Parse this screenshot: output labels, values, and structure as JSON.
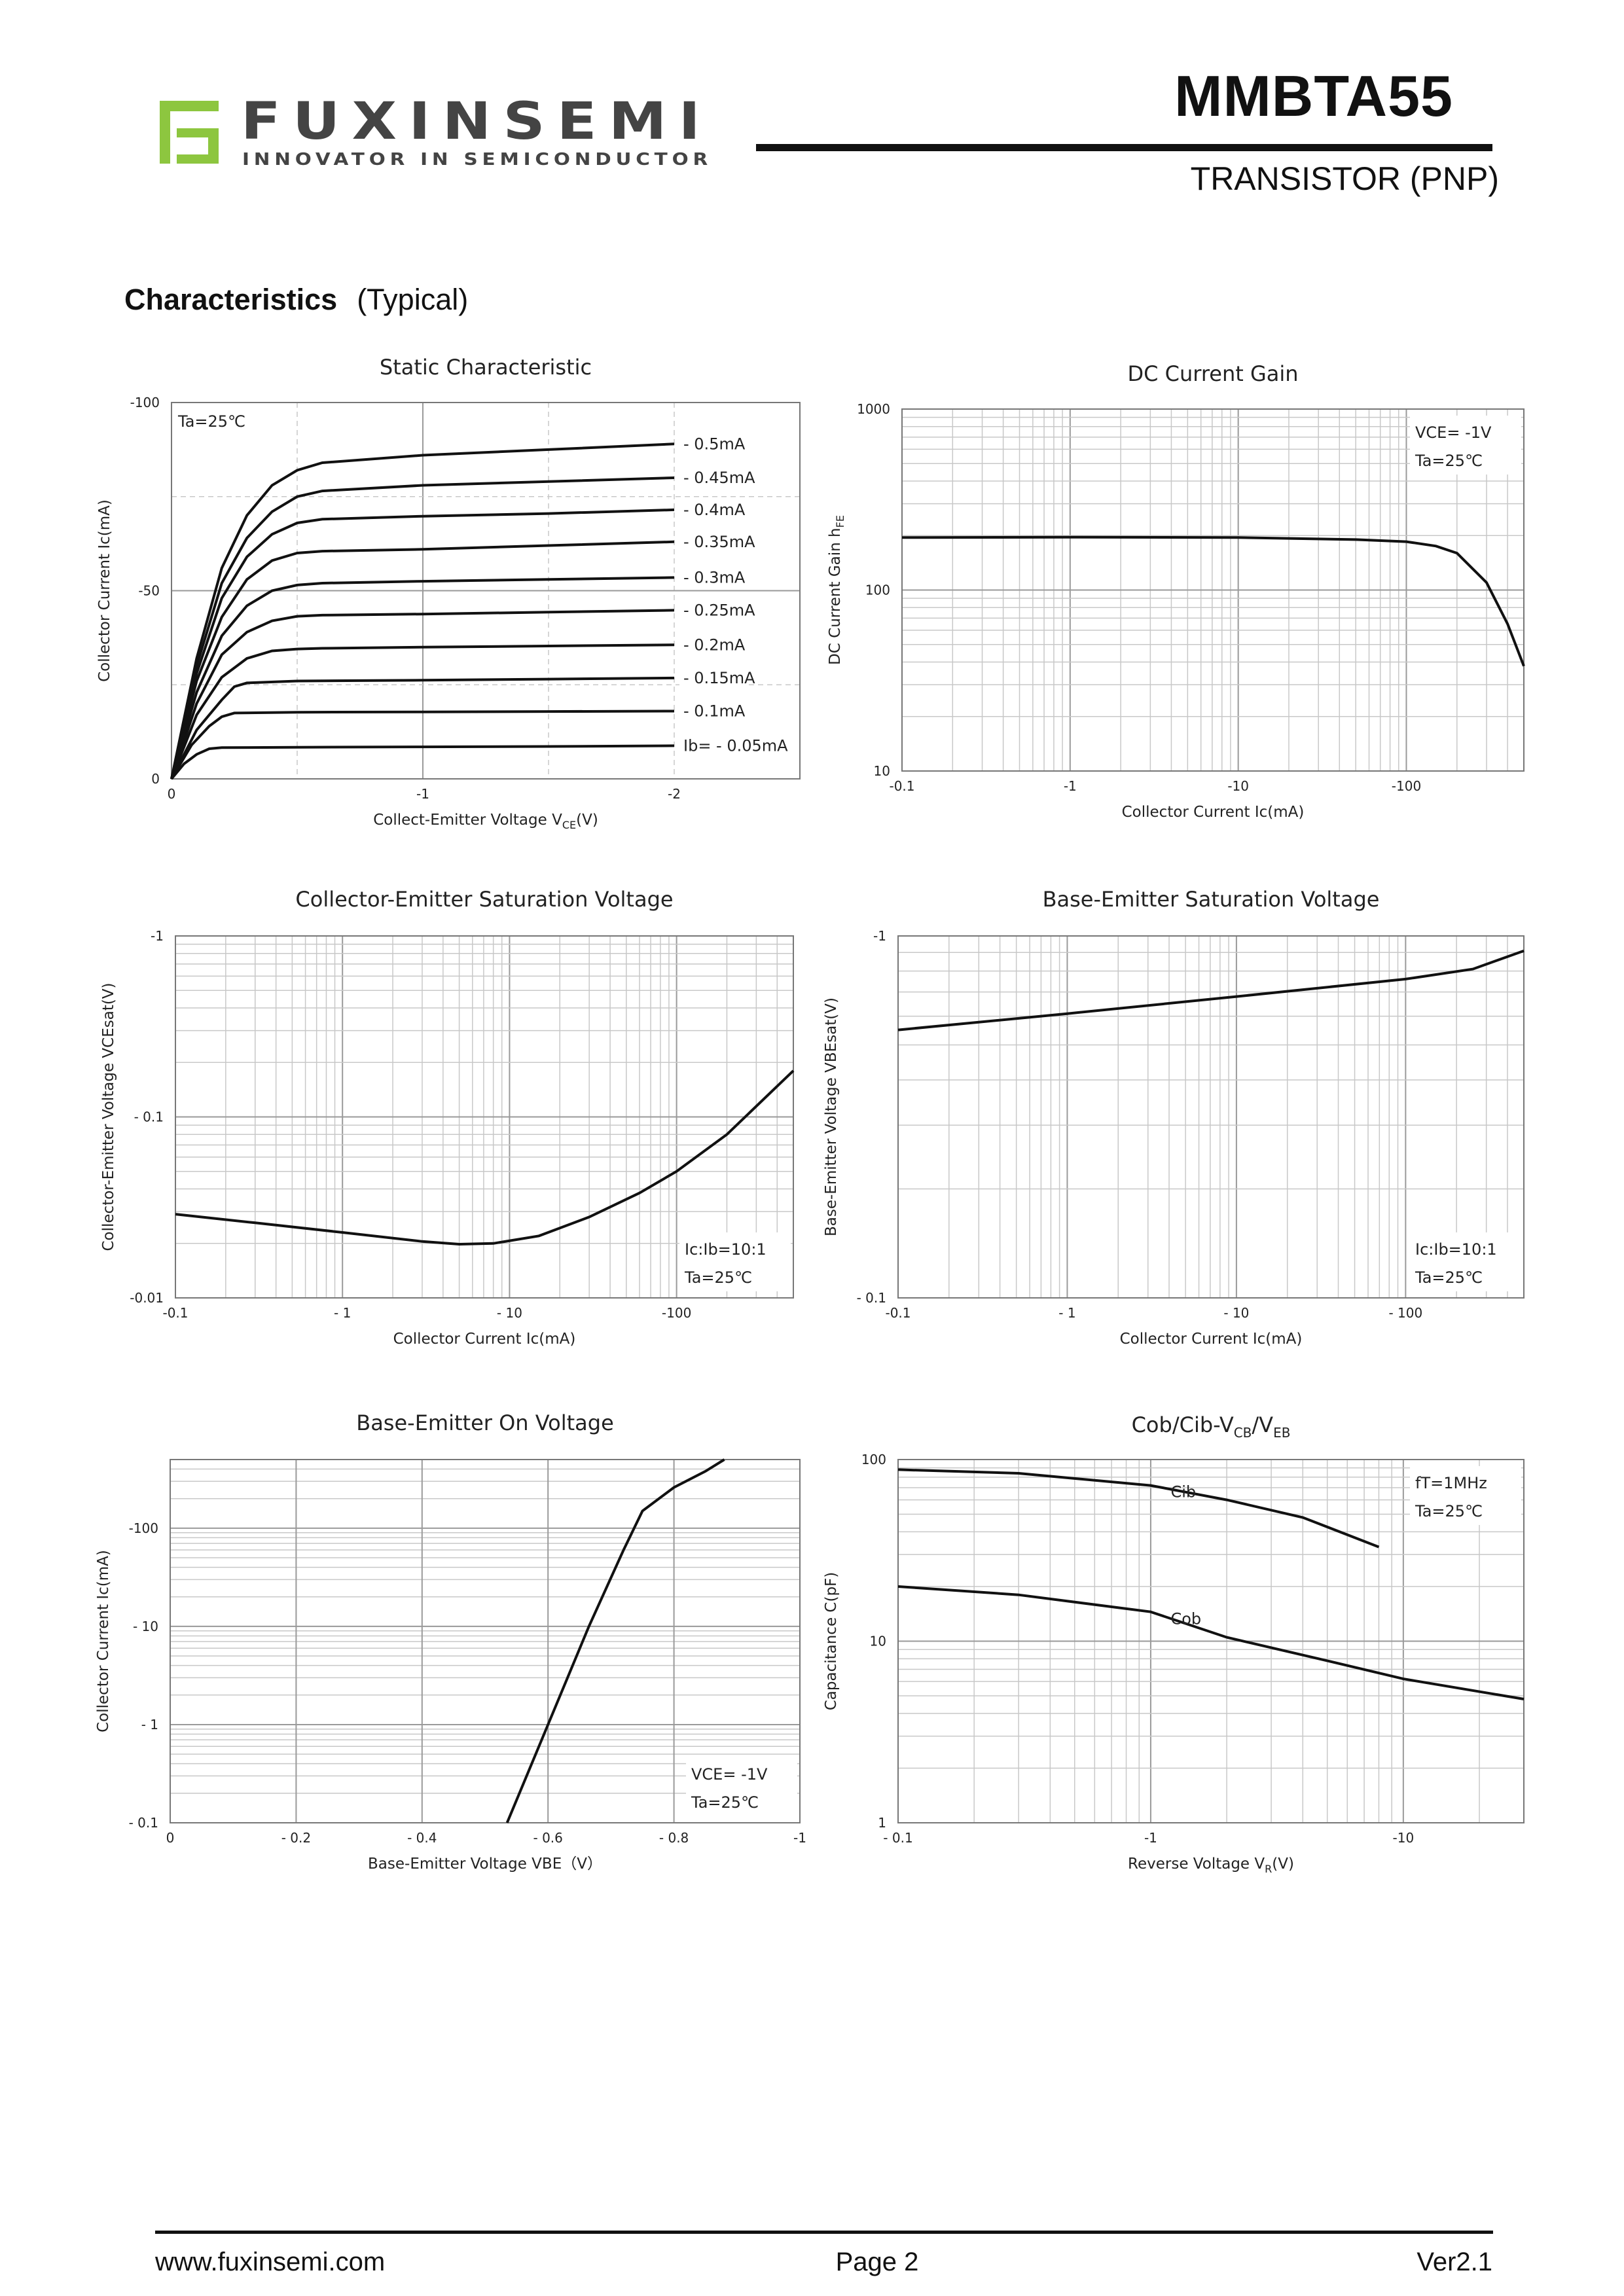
{
  "header": {
    "brand": "FUXINSEMI",
    "tagline": "INNOVATOR IN SEMICONDUCTOR",
    "part_number": "MMBTA55",
    "device_type": "TRANSISTOR (PNP)",
    "brand_color": "#8dc63f",
    "brand_dark": "#444444"
  },
  "section": {
    "title": "Characteristics",
    "subtitle": "(Typical)"
  },
  "footer": {
    "website": "www.fuxinsemi.com",
    "page": "Page 2",
    "version": "Ver2.1"
  },
  "chart_data": [
    {
      "id": "static",
      "type": "line",
      "title": "Static Characteristic",
      "xlabel": "Collect-Emitter Voltage  V",
      "xlabel_sub": "CE",
      "xlabel_tail": "(V)",
      "ylabel": "Collector  Current   Ic(mA)",
      "x_scale": "linear",
      "y_scale": "linear",
      "xlim": [
        0,
        -2.5
      ],
      "ylim": [
        0,
        -100
      ],
      "x_ticks": [
        {
          "v": 0,
          "t": "0"
        },
        {
          "v": -1,
          "t": "-1"
        },
        {
          "v": -2,
          "t": "-2"
        }
      ],
      "y_ticks": [
        {
          "v": 0,
          "t": "0"
        },
        {
          "v": -50,
          "t": "-50"
        },
        {
          "v": -100,
          "t": "-100"
        }
      ],
      "annotations": [
        "Ta=25℃"
      ],
      "series": [
        {
          "name": "- 0.5mA",
          "points": [
            [
              0,
              0
            ],
            [
              -0.1,
              -32
            ],
            [
              -0.2,
              -56
            ],
            [
              -0.3,
              -70
            ],
            [
              -0.4,
              -78
            ],
            [
              -0.5,
              -82
            ],
            [
              -0.6,
              -84
            ],
            [
              -1.0,
              -86
            ],
            [
              -1.5,
              -87.5
            ],
            [
              -2.0,
              -89
            ]
          ]
        },
        {
          "name": "- 0.45mA",
          "points": [
            [
              0,
              0
            ],
            [
              -0.1,
              -30
            ],
            [
              -0.2,
              -52
            ],
            [
              -0.3,
              -64
            ],
            [
              -0.4,
              -71
            ],
            [
              -0.5,
              -75
            ],
            [
              -0.6,
              -76.5
            ],
            [
              -1.0,
              -78
            ],
            [
              -1.5,
              -79
            ],
            [
              -2.0,
              -80
            ]
          ]
        },
        {
          "name": "- 0.4mA",
          "points": [
            [
              0,
              0
            ],
            [
              -0.1,
              -28
            ],
            [
              -0.2,
              -48
            ],
            [
              -0.3,
              -59
            ],
            [
              -0.4,
              -65
            ],
            [
              -0.5,
              -68
            ],
            [
              -0.6,
              -69
            ],
            [
              -1.0,
              -69.8
            ],
            [
              -1.5,
              -70.5
            ],
            [
              -2.0,
              -71.5
            ]
          ]
        },
        {
          "name": "- 0.35mA",
          "points": [
            [
              0,
              0
            ],
            [
              -0.1,
              -26
            ],
            [
              -0.2,
              -43
            ],
            [
              -0.3,
              -53
            ],
            [
              -0.4,
              -58
            ],
            [
              -0.5,
              -60
            ],
            [
              -0.6,
              -60.5
            ],
            [
              -1.0,
              -61
            ],
            [
              -1.5,
              -62
            ],
            [
              -2.0,
              -63
            ]
          ]
        },
        {
          "name": "- 0.3mA",
          "points": [
            [
              0,
              0
            ],
            [
              -0.1,
              -23
            ],
            [
              -0.2,
              -38
            ],
            [
              -0.3,
              -46
            ],
            [
              -0.4,
              -50
            ],
            [
              -0.5,
              -51.5
            ],
            [
              -0.6,
              -52
            ],
            [
              -1.0,
              -52.5
            ],
            [
              -1.5,
              -53
            ],
            [
              -2.0,
              -53.5
            ]
          ]
        },
        {
          "name": "- 0.25mA",
          "points": [
            [
              0,
              0
            ],
            [
              -0.1,
              -20
            ],
            [
              -0.2,
              -33
            ],
            [
              -0.3,
              -39
            ],
            [
              -0.4,
              -42
            ],
            [
              -0.5,
              -43.2
            ],
            [
              -0.6,
              -43.5
            ],
            [
              -1.0,
              -43.8
            ],
            [
              -1.5,
              -44.3
            ],
            [
              -2.0,
              -44.8
            ]
          ]
        },
        {
          "name": "- 0.2mA",
          "points": [
            [
              0,
              0
            ],
            [
              -0.1,
              -17
            ],
            [
              -0.2,
              -27
            ],
            [
              -0.3,
              -32
            ],
            [
              -0.4,
              -34
            ],
            [
              -0.5,
              -34.5
            ],
            [
              -0.6,
              -34.7
            ],
            [
              -1.0,
              -35
            ],
            [
              -1.5,
              -35.3
            ],
            [
              -2.0,
              -35.6
            ]
          ]
        },
        {
          "name": "- 0.15mA",
          "points": [
            [
              0,
              0
            ],
            [
              -0.1,
              -13
            ],
            [
              -0.2,
              -21
            ],
            [
              -0.25,
              -24.5
            ],
            [
              -0.3,
              -25.5
            ],
            [
              -0.5,
              -26
            ],
            [
              -1.0,
              -26.2
            ],
            [
              -1.5,
              -26.5
            ],
            [
              -2.0,
              -26.8
            ]
          ]
        },
        {
          "name": "- 0.1mA",
          "points": [
            [
              0,
              0
            ],
            [
              -0.08,
              -9
            ],
            [
              -0.15,
              -14
            ],
            [
              -0.2,
              -16.5
            ],
            [
              -0.25,
              -17.5
            ],
            [
              -0.5,
              -17.7
            ],
            [
              -1.0,
              -17.8
            ],
            [
              -1.5,
              -17.9
            ],
            [
              -2.0,
              -18
            ]
          ]
        },
        {
          "name": "Ib= - 0.05mA",
          "points": [
            [
              0,
              0
            ],
            [
              -0.05,
              -4
            ],
            [
              -0.1,
              -6.5
            ],
            [
              -0.15,
              -8
            ],
            [
              -0.2,
              -8.3
            ],
            [
              -0.5,
              -8.4
            ],
            [
              -1.0,
              -8.5
            ],
            [
              -1.5,
              -8.6
            ],
            [
              -2.0,
              -8.8
            ]
          ]
        }
      ]
    },
    {
      "id": "hfe",
      "type": "line",
      "title": "DC Current Gain",
      "xlabel": "Collector Current   Ic(mA)",
      "ylabel": "DC Current Gain  h",
      "ylabel_sub": "FE",
      "x_scale": "log",
      "y_scale": "log",
      "xlim": [
        0.1,
        500
      ],
      "ylim": [
        10,
        1000
      ],
      "x_ticks": [
        {
          "v": 0.1,
          "t": "-0.1"
        },
        {
          "v": 1,
          "t": "-1"
        },
        {
          "v": 10,
          "t": "-10"
        },
        {
          "v": 100,
          "t": "-100"
        }
      ],
      "y_ticks": [
        {
          "v": 10,
          "t": "10"
        },
        {
          "v": 100,
          "t": "100"
        },
        {
          "v": 1000,
          "t": "1000"
        }
      ],
      "annotations": [
        "VCE= -1V",
        "Ta=25℃"
      ],
      "series": [
        {
          "name": "hFE",
          "points": [
            [
              0.1,
              195
            ],
            [
              1,
              196
            ],
            [
              10,
              195
            ],
            [
              50,
              190
            ],
            [
              100,
              185
            ],
            [
              150,
              175
            ],
            [
              200,
              160
            ],
            [
              300,
              110
            ],
            [
              400,
              65
            ],
            [
              500,
              38
            ]
          ]
        }
      ]
    },
    {
      "id": "vcesat",
      "type": "line",
      "title": "Collector-Emitter Saturation Voltage",
      "xlabel": "Collector Current   Ic(mA)",
      "ylabel": "Collector-Emitter Voltage   VCEsat(V)",
      "x_scale": "log",
      "y_scale": "log",
      "xlim": [
        0.1,
        500
      ],
      "ylim": [
        0.01,
        1
      ],
      "x_ticks": [
        {
          "v": 0.1,
          "t": "-0.1"
        },
        {
          "v": 1,
          "t": "- 1"
        },
        {
          "v": 10,
          "t": "- 10"
        },
        {
          "v": 100,
          "t": "-100"
        }
      ],
      "y_ticks": [
        {
          "v": 0.01,
          "t": "-0.01"
        },
        {
          "v": 0.1,
          "t": "- 0.1"
        },
        {
          "v": 1,
          "t": "-1"
        }
      ],
      "annotations": [
        "Ic:Ib=10:1",
        "Ta=25℃"
      ],
      "series": [
        {
          "name": "VCEsat",
          "points": [
            [
              0.1,
              0.029
            ],
            [
              0.3,
              0.026
            ],
            [
              1,
              0.023
            ],
            [
              3,
              0.0205
            ],
            [
              5,
              0.0198
            ],
            [
              8,
              0.02
            ],
            [
              15,
              0.022
            ],
            [
              30,
              0.028
            ],
            [
              60,
              0.038
            ],
            [
              100,
              0.05
            ],
            [
              200,
              0.08
            ],
            [
              500,
              0.18
            ]
          ]
        }
      ]
    },
    {
      "id": "vbesat",
      "type": "line",
      "title": "Base-Emitter Saturation Voltage",
      "xlabel": "Collector Current   Ic(mA)",
      "ylabel": "Base-Emitter Voltage   VBEsat(V)",
      "x_scale": "log",
      "y_scale": "log",
      "xlim": [
        0.1,
        500
      ],
      "ylim": [
        0.1,
        1
      ],
      "x_ticks": [
        {
          "v": 0.1,
          "t": "-0.1"
        },
        {
          "v": 1,
          "t": "- 1"
        },
        {
          "v": 10,
          "t": "- 10"
        },
        {
          "v": 100,
          "t": "- 100"
        }
      ],
      "y_ticks": [
        {
          "v": 0.1,
          "t": "- 0.1"
        },
        {
          "v": 1,
          "t": "-1"
        }
      ],
      "annotations": [
        "Ic:Ib=10:1",
        "Ta=25℃"
      ],
      "series": [
        {
          "name": "VBEsat",
          "points": [
            [
              0.1,
              0.55
            ],
            [
              1,
              0.61
            ],
            [
              10,
              0.68
            ],
            [
              100,
              0.76
            ],
            [
              250,
              0.81
            ],
            [
              500,
              0.91
            ]
          ]
        }
      ]
    },
    {
      "id": "vbeon",
      "type": "line",
      "title": "Base-Emitter On Voltage",
      "xlabel": "Base-Emitter Voltage   VBE（V）",
      "ylabel": "Collector Current   Ic(mA)",
      "x_scale": "linear",
      "y_scale": "log",
      "xlim": [
        0,
        -1
      ],
      "ylim": [
        0.1,
        500
      ],
      "x_ticks": [
        {
          "v": 0,
          "t": "0"
        },
        {
          "v": -0.2,
          "t": "- 0.2"
        },
        {
          "v": -0.4,
          "t": "- 0.4"
        },
        {
          "v": -0.6,
          "t": "- 0.6"
        },
        {
          "v": -0.8,
          "t": "- 0.8"
        },
        {
          "v": -1,
          "t": "-1"
        }
      ],
      "y_ticks": [
        {
          "v": 0.1,
          "t": "- 0.1"
        },
        {
          "v": 1,
          "t": "- 1"
        },
        {
          "v": 10,
          "t": "- 10"
        },
        {
          "v": 100,
          "t": "-100"
        }
      ],
      "annotations": [
        "VCE= -1V",
        "Ta=25℃"
      ],
      "series": [
        {
          "name": "Ic",
          "points": [
            [
              -0.535,
              0.1
            ],
            [
              -0.6,
              1
            ],
            [
              -0.665,
              10
            ],
            [
              -0.72,
              60
            ],
            [
              -0.75,
              150
            ],
            [
              -0.8,
              260
            ],
            [
              -0.85,
              380
            ],
            [
              -0.88,
              500
            ]
          ]
        }
      ]
    },
    {
      "id": "cap",
      "type": "line",
      "title": "Cob/Cib-V",
      "title_sub1": "CB",
      "title_mid": "/V",
      "title_sub2": "EB",
      "xlabel": "Reverse Voltage   V",
      "xlabel_sub": "R",
      "xlabel_tail": "(V)",
      "ylabel": "Capacitance   C(pF)",
      "x_scale": "log",
      "y_scale": "log",
      "xlim": [
        0.1,
        30
      ],
      "ylim": [
        1,
        100
      ],
      "x_ticks": [
        {
          "v": 0.1,
          "t": "- 0.1"
        },
        {
          "v": 1,
          "t": "-1"
        },
        {
          "v": 10,
          "t": "-10"
        }
      ],
      "y_ticks": [
        {
          "v": 1,
          "t": "1"
        },
        {
          "v": 10,
          "t": "10"
        },
        {
          "v": 100,
          "t": "100"
        }
      ],
      "annotations": [
        "fT=1MHz",
        "Ta=25℃"
      ],
      "series": [
        {
          "name": "Cib",
          "label_at": [
            1.2,
            62
          ],
          "points": [
            [
              0.1,
              88
            ],
            [
              0.3,
              84
            ],
            [
              1,
              72
            ],
            [
              2,
              60
            ],
            [
              4,
              48
            ],
            [
              8,
              33
            ]
          ]
        },
        {
          "name": "Cob",
          "label_at": [
            1.2,
            12.4
          ],
          "points": [
            [
              0.1,
              20
            ],
            [
              0.3,
              18
            ],
            [
              1,
              14.5
            ],
            [
              2,
              10.5
            ],
            [
              5,
              7.8
            ],
            [
              10,
              6.2
            ],
            [
              30,
              4.8
            ]
          ]
        }
      ]
    }
  ]
}
